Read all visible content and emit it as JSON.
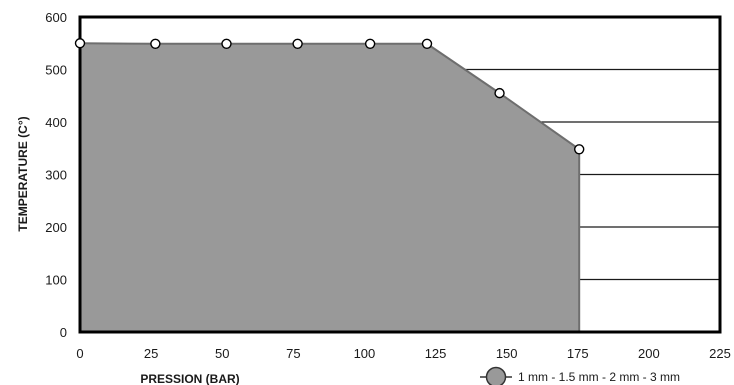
{
  "chart_data": {
    "type": "area",
    "xlabel": "PRESSION (BAR)",
    "ylabel": "TEMPERATURE  (C°)",
    "xlim": [
      0,
      225
    ],
    "ylim": [
      0,
      600
    ],
    "x_ticks": [
      "0",
      "25",
      "50",
      "75",
      "100",
      "125",
      "150",
      "175",
      "200",
      "225"
    ],
    "y_ticks": [
      "0",
      "100",
      "200",
      "300",
      "400",
      "500",
      "600"
    ],
    "grid": "horizontal",
    "series": [
      {
        "x": [
          0,
          26.5,
          51.5,
          76.5,
          102,
          122,
          147.5,
          175.5
        ],
        "y": [
          550,
          549,
          549,
          549,
          549,
          549,
          455,
          348
        ],
        "area_end": {
          "x": 175.5,
          "y": 0
        }
      }
    ],
    "legend": {
      "label": "1 mm - 1.5 mm - 2 mm - 3 mm",
      "position": "bottom-right"
    },
    "colors": {
      "fill": "#999999",
      "edge": "#6e6e6e",
      "frame": "#000000",
      "grid": "#1a1a1a",
      "marker_fill": "#ffffff"
    }
  }
}
